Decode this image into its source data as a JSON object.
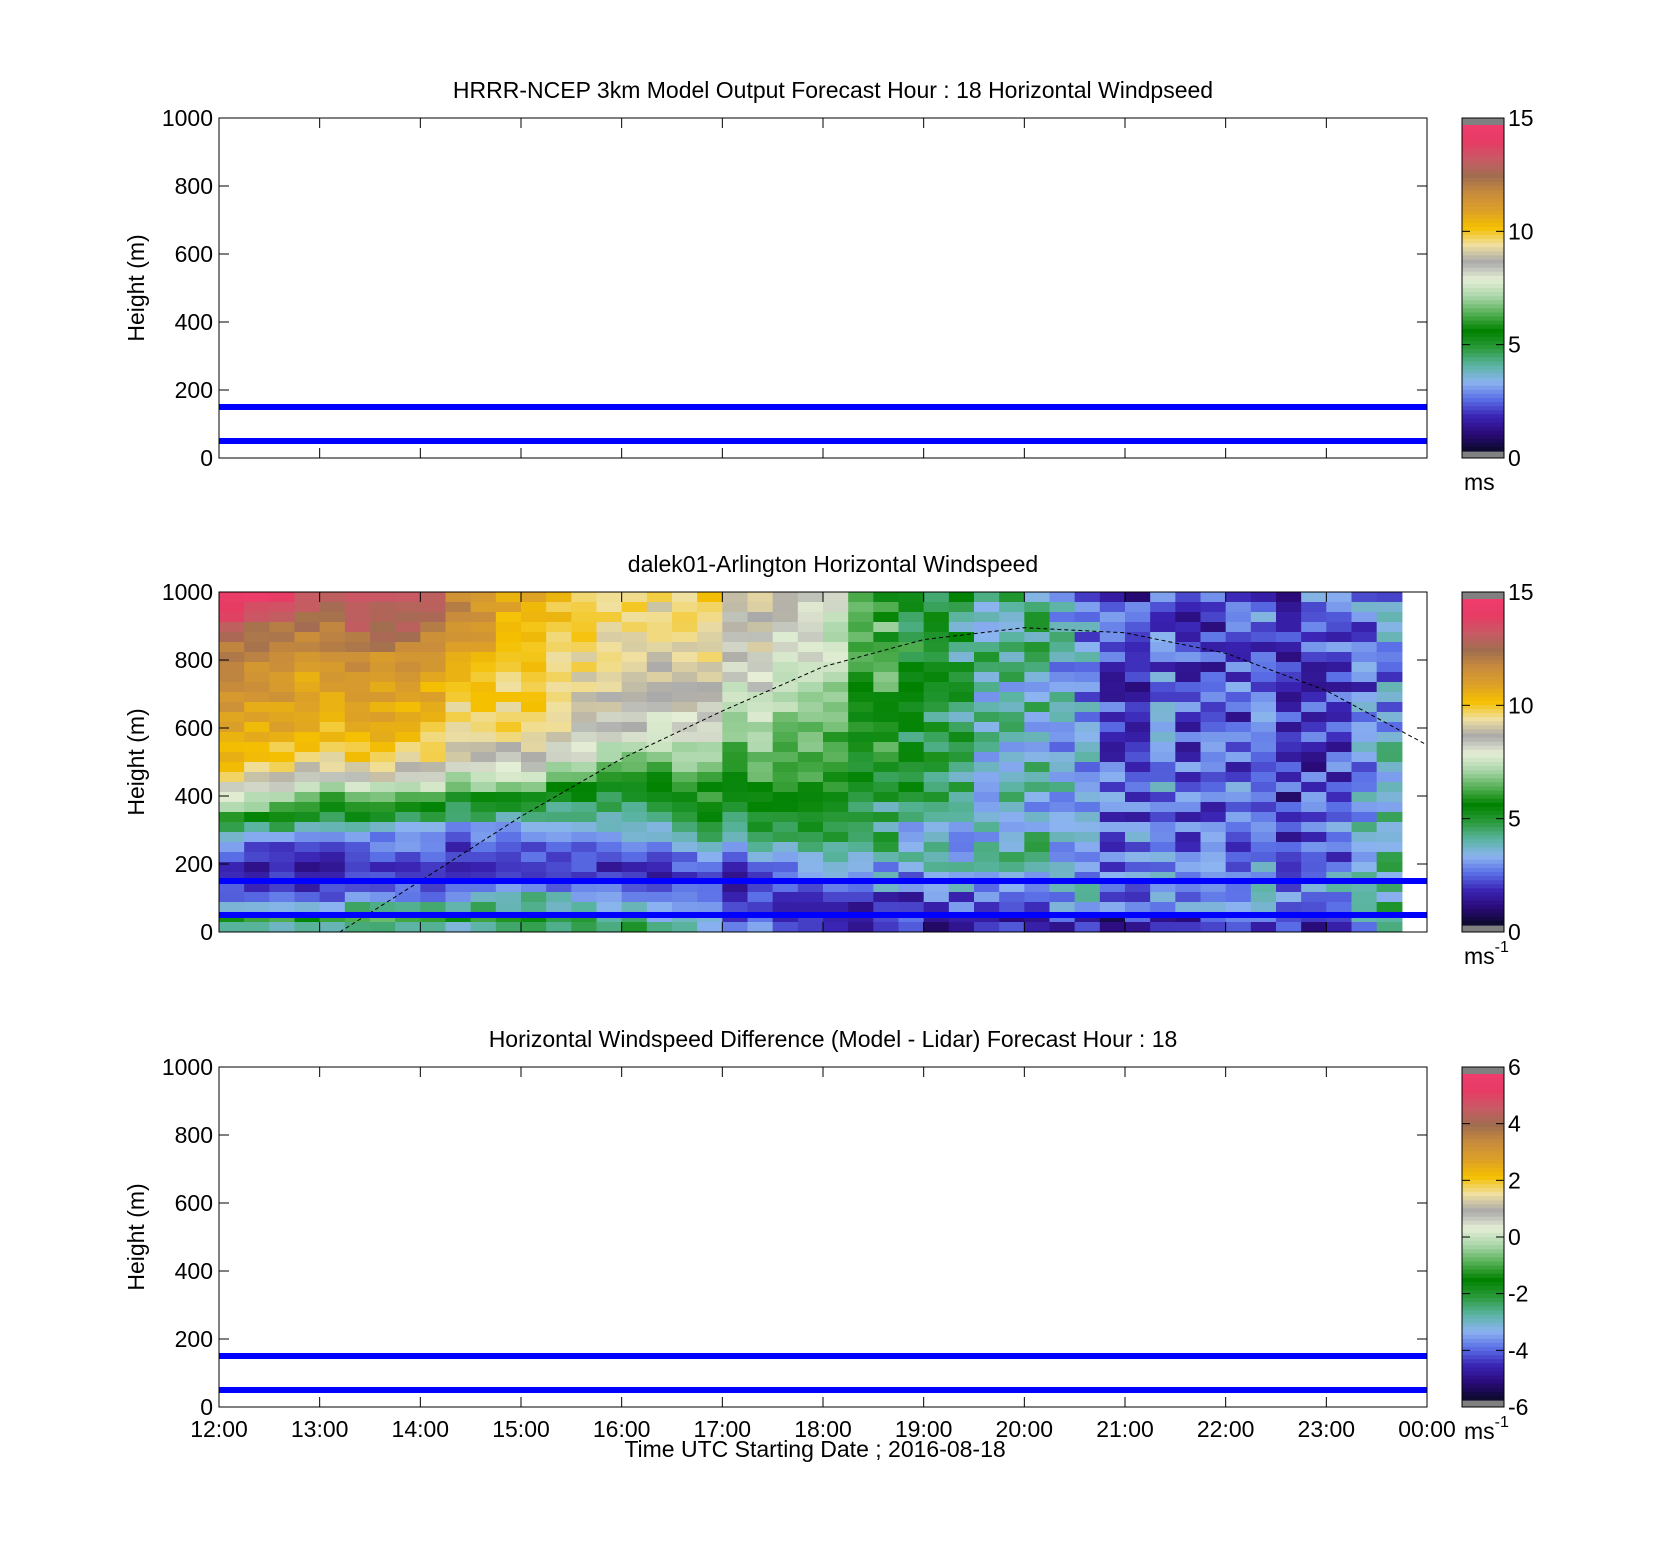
{
  "figure": {
    "xlabel": "Time UTC  Starting Date ; 2016-08-18"
  },
  "chart_data": [
    {
      "type": "heatmap",
      "title": "HRRR-NCEP 3km Model Output   Forecast Hour : 18 Horizontal Windpseed",
      "ylabel": "Height (m)",
      "ylim": [
        0,
        1000
      ],
      "yticks": [
        "0",
        "200",
        "400",
        "600",
        "800",
        "1000"
      ],
      "xlim": [
        0,
        12
      ],
      "xticks": [
        "12:00",
        "13:00",
        "14:00",
        "15:00",
        "16:00",
        "17:00",
        "18:00",
        "19:00",
        "20:00",
        "21:00",
        "22:00",
        "23:00",
        "00:00"
      ],
      "show_xtick_labels": false,
      "hlines": [
        50,
        150
      ],
      "hline_color": "#0000ff",
      "colorbar": {
        "min": 0,
        "max": 15,
        "ticks": [
          "0",
          "5",
          "10",
          "15"
        ],
        "units": "ms",
        "units_sup": ""
      },
      "has_data": false
    },
    {
      "type": "heatmap",
      "title": "dalek01-Arlington  Horizontal Windspeed",
      "ylabel": "Height (m)",
      "ylim": [
        0,
        1000
      ],
      "yticks": [
        "0",
        "200",
        "400",
        "600",
        "800",
        "1000"
      ],
      "xlim": [
        0,
        12
      ],
      "xticks": [
        "12:00",
        "13:00",
        "14:00",
        "15:00",
        "16:00",
        "17:00",
        "18:00",
        "19:00",
        "20:00",
        "21:00",
        "22:00",
        "23:00",
        "00:00"
      ],
      "show_xtick_labels": false,
      "hlines": [
        50,
        150
      ],
      "hline_color": "#0000ff",
      "colorbar": {
        "min": 0,
        "max": 15,
        "ticks": [
          "0",
          "5",
          "10",
          "15"
        ],
        "units": "ms",
        "units_sup": "-1"
      },
      "has_data": true,
      "data_columns_x_end": 11.75,
      "num_columns": 47,
      "heights": [
        20,
        40,
        60,
        80,
        100,
        130,
        160,
        200,
        250,
        300,
        350,
        400,
        450,
        500,
        600,
        700,
        800,
        900,
        1000
      ],
      "profiles": [
        {
          "hour": 12.0,
          "speed": [
            4,
            6,
            5,
            3,
            2.5,
            1.8,
            1.6,
            1.5,
            2.5,
            4.5,
            6.5,
            8,
            9.3,
            10.2,
            11,
            11.5,
            11.8,
            13,
            15
          ]
        },
        {
          "hour": 13.0,
          "speed": [
            4,
            6,
            5,
            3,
            2.3,
            1.8,
            1.6,
            1.5,
            1.7,
            3.3,
            5.5,
            6.5,
            8.5,
            9.9,
            10.5,
            11,
            11.5,
            12.5,
            13.6
          ]
        },
        {
          "hour": 14.0,
          "speed": [
            4,
            6,
            5,
            3,
            2.2,
            2,
            1.8,
            1.8,
            2.3,
            2.5,
            5,
            6,
            8,
            9.2,
            10,
            10.5,
            11.2,
            12.5,
            13.6
          ]
        },
        {
          "hour": 15.0,
          "speed": [
            4,
            6,
            5,
            4,
            4,
            3,
            2,
            1.8,
            2,
            3,
            4,
            5.5,
            7,
            8.5,
            9.6,
            9.8,
            10,
            10.4,
            10.5
          ]
        },
        {
          "hour": 16.0,
          "speed": [
            5,
            4.5,
            4,
            3.5,
            3,
            2.5,
            2,
            2,
            2.5,
            3.5,
            4.5,
            5,
            5.5,
            7,
            8.6,
            9.3,
            9.6,
            9.9,
            10
          ]
        },
        {
          "hour": 17.0,
          "speed": [
            3,
            2.5,
            2.2,
            2,
            1.8,
            1.6,
            1.5,
            2,
            3,
            4.5,
            5,
            5.5,
            6,
            6.5,
            7.5,
            8.2,
            9,
            9.4,
            9.6
          ]
        },
        {
          "hour": 18.0,
          "speed": [
            1.6,
            1.5,
            1.5,
            1.5,
            1.6,
            2,
            2.5,
            3,
            4,
            4.8,
            5,
            5.3,
            5.5,
            5.8,
            6.3,
            6.8,
            7.3,
            7.5,
            8
          ]
        },
        {
          "hour": 19.0,
          "speed": [
            1.5,
            1.6,
            1.8,
            2,
            2.3,
            2.8,
            3.2,
            3.5,
            3.5,
            3.6,
            4,
            4.5,
            4.8,
            5,
            5,
            5,
            5,
            5,
            5
          ]
        },
        {
          "hour": 20.0,
          "speed": [
            1.3,
            1.5,
            1.8,
            2.5,
            3,
            3.3,
            3.5,
            3.5,
            3.5,
            3.3,
            3.3,
            3.3,
            3.5,
            3.5,
            3.5,
            3.5,
            3.8,
            4,
            4.2
          ]
        },
        {
          "hour": 21.0,
          "speed": [
            1.2,
            1.5,
            2,
            2.5,
            3,
            3,
            3,
            2.8,
            2.7,
            2.6,
            2.5,
            2.5,
            2.5,
            2.4,
            2.3,
            2.2,
            2.1,
            2,
            2
          ]
        },
        {
          "hour": 22.0,
          "speed": [
            1.2,
            1.5,
            2,
            2.5,
            2.7,
            2.7,
            2.7,
            2.6,
            2.4,
            2.3,
            2.2,
            2.2,
            2.1,
            2,
            1.9,
            1.8,
            1.8,
            1.8,
            1.8
          ]
        },
        {
          "hour": 23.0,
          "speed": [
            2,
            2.5,
            3,
            3.2,
            3.2,
            3,
            2.8,
            2.5,
            2.4,
            2.3,
            2.2,
            2,
            2,
            2,
            2,
            2,
            2.2,
            2.5,
            2.5
          ]
        },
        {
          "hour": 23.75,
          "speed": [
            5,
            4.8,
            4.6,
            4.5,
            4.5,
            4.5,
            4.5,
            4.5,
            4.5,
            4.5,
            4.5,
            4.5,
            4.3,
            4,
            3.5,
            3.2,
            3,
            3,
            3
          ]
        }
      ],
      "boundary_layer_curve": {
        "x": [
          1.2,
          2,
          3,
          4,
          5,
          6,
          7,
          8,
          9,
          10,
          11,
          12
        ],
        "y": [
          0,
          150,
          340,
          510,
          650,
          780,
          860,
          895,
          880,
          820,
          710,
          550
        ]
      }
    },
    {
      "type": "heatmap",
      "title": "Horizontal Windspeed Difference (Model - Lidar) Forecast Hour : 18",
      "ylabel": "Height (m)",
      "ylim": [
        0,
        1000
      ],
      "yticks": [
        "0",
        "200",
        "400",
        "600",
        "800",
        "1000"
      ],
      "xlim": [
        0,
        12
      ],
      "xticks": [
        "12:00",
        "13:00",
        "14:00",
        "15:00",
        "16:00",
        "17:00",
        "18:00",
        "19:00",
        "20:00",
        "21:00",
        "22:00",
        "23:00",
        "00:00"
      ],
      "show_xtick_labels": true,
      "hlines": [
        50,
        150
      ],
      "hline_color": "#0000ff",
      "colorbar": {
        "min": -6,
        "max": 6,
        "ticks": [
          "-6",
          "-4",
          "-2",
          "0",
          "2",
          "4",
          "6"
        ],
        "units": "ms",
        "units_sup": "-1"
      },
      "has_data": false
    }
  ],
  "colormap": [
    "#808080",
    "#0a0a28",
    "#2a0a78",
    "#3a24b4",
    "#5a6ee6",
    "#8cb4f0",
    "#5ab4a0",
    "#2a9a3a",
    "#008200",
    "#55b055",
    "#aad6aa",
    "#e6eed6",
    "#aaaaaa",
    "#f0e0a0",
    "#f5c000",
    "#dca028",
    "#c88c3c",
    "#a06e50",
    "#c85a64",
    "#e63c64",
    "#f03c6e",
    "#808080"
  ]
}
